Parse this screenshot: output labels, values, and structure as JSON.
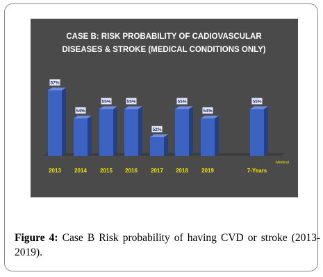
{
  "caption": {
    "label": "Figure 4:",
    "text": " Case B Risk probability of having CVD or stroke (2013-2019)."
  },
  "colors": {
    "panel_bg": "#4a4a4a",
    "bar_front": "#3c62c2",
    "bar_side": "#233f86",
    "bar_top": "#6d8ce0",
    "label_bg": "#e9ecf6",
    "axis_text": "#f2e200"
  },
  "chart_data": {
    "type": "bar",
    "title_lines": [
      "CASE B:  RISK PROBABILITY OF CADIOVASCULAR",
      "DISEASES & STROKE  (MEDICAL CONDITIONS ONLY)"
    ],
    "categories": [
      "2013",
      "2014",
      "2015",
      "2016",
      "2017",
      "2018",
      "2019",
      "7-Years"
    ],
    "series": [
      {
        "name": "Medical",
        "values": [
          57,
          54,
          55,
          55,
          52,
          55,
          54,
          55
        ]
      }
    ],
    "value_labels": [
      "57%",
      "54%",
      "55%",
      "55%",
      "52%",
      "55%",
      "54%",
      "55%"
    ],
    "ylim": [
      50,
      58
    ],
    "unit": "%",
    "grid": false,
    "three_d": true
  }
}
